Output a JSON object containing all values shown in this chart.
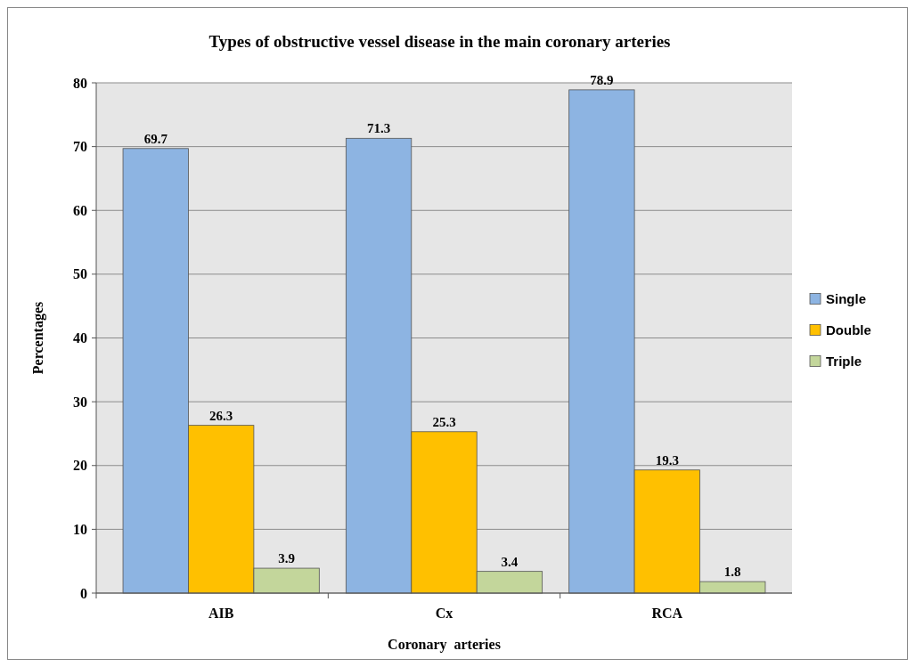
{
  "chart_data": {
    "type": "bar",
    "title": "Types of obstructive vessel disease in the main coronary arteries",
    "xlabel": "Coronary  arteries",
    "ylabel": "Percentages",
    "categories": [
      "AIB",
      "Cx",
      "RCA"
    ],
    "series": [
      {
        "name": "Single",
        "color": "#8db4e2",
        "values": [
          69.7,
          71.3,
          78.9
        ]
      },
      {
        "name": "Double",
        "color": "#ffc000",
        "values": [
          26.3,
          25.3,
          19.3
        ]
      },
      {
        "name": "Triple",
        "color": "#c3d69b",
        "values": [
          3.9,
          3.4,
          1.8
        ]
      }
    ],
    "ylim": [
      0,
      80
    ],
    "yticks": [
      0,
      10,
      20,
      30,
      40,
      50,
      60,
      70,
      80
    ],
    "grid": "y",
    "legend": "right",
    "data_labels": true
  }
}
